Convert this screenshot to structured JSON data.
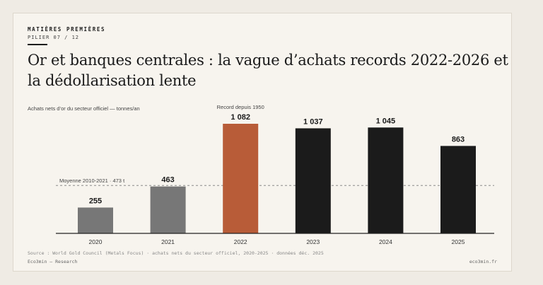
{
  "header": {
    "kicker": "MATIÈRES PREMIÈRES",
    "pillar": "PILIER 07 / 12",
    "title": "Or et banques centrales : la vague d’achats records 2022-2026 et la dédollarisation lente"
  },
  "chart_data": {
    "type": "bar",
    "unit_label": "Achats nets d’or du secteur officiel — tonnes/an",
    "categories": [
      "2020",
      "2021",
      "2022",
      "2023",
      "2024",
      "2025"
    ],
    "values": [
      255,
      463,
      1082,
      1037,
      1045,
      863
    ],
    "value_labels": [
      "255",
      "463",
      "1 082",
      "1 037",
      "1 045",
      "863"
    ],
    "bar_colors": [
      "#777777",
      "#777777",
      "#b85c38",
      "#1b1b1b",
      "#1b1b1b",
      "#1b1b1b"
    ],
    "ylim": [
      0,
      1082
    ],
    "reference_line": {
      "label": "Moyenne 2010-2021 · 473 t",
      "value": 473
    },
    "annotation": {
      "label": "Record depuis 1950",
      "category": "2022"
    }
  },
  "footer": {
    "source": "Source : World Gold Council (Metals Focus) · achats nets du secteur officiel, 2020-2025 · données déc. 2025",
    "brand": "Eco3min — Research",
    "site": "eco3min.fr"
  }
}
